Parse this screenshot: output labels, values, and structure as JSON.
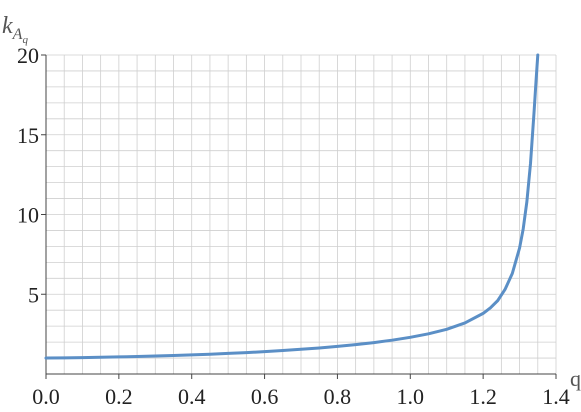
{
  "chart_data": {
    "type": "line",
    "ylabel": {
      "main": "k",
      "sub": "A",
      "subsub": "q"
    },
    "xlabel": "q",
    "xlim": [
      0.0,
      1.4
    ],
    "ylim": [
      0,
      20
    ],
    "x_ticks": [
      0.0,
      0.2,
      0.4,
      0.6,
      0.8,
      1.0,
      1.2,
      1.4
    ],
    "x_tick_labels": [
      "0.0",
      "0.2",
      "0.4",
      "0.6",
      "0.8",
      "1.0",
      "1.2",
      "1.4"
    ],
    "y_ticks": [
      5,
      10,
      15,
      20
    ],
    "y_tick_labels": [
      "5",
      "10",
      "15",
      "20"
    ],
    "x_grid_step": 0.05,
    "y_grid_step": 1,
    "grid": true,
    "line_color": "#5b8fc6",
    "series": [
      {
        "x": [
          0.0,
          0.05,
          0.1,
          0.15,
          0.2,
          0.25,
          0.3,
          0.35,
          0.4,
          0.45,
          0.5,
          0.55,
          0.6,
          0.65,
          0.7,
          0.75,
          0.8,
          0.85,
          0.9,
          0.95,
          1.0,
          1.05,
          1.1,
          1.15,
          1.2,
          1.22,
          1.24,
          1.26,
          1.28,
          1.3,
          1.31,
          1.32,
          1.33,
          1.34,
          1.345,
          1.35
        ],
        "y": [
          1.0,
          1.01,
          1.03,
          1.05,
          1.07,
          1.1,
          1.13,
          1.16,
          1.2,
          1.24,
          1.29,
          1.34,
          1.4,
          1.47,
          1.55,
          1.63,
          1.73,
          1.84,
          1.97,
          2.12,
          2.3,
          2.52,
          2.8,
          3.2,
          3.8,
          4.15,
          4.6,
          5.3,
          6.3,
          7.9,
          9.1,
          10.8,
          13.2,
          16.5,
          18.3,
          20.0
        ]
      }
    ]
  }
}
